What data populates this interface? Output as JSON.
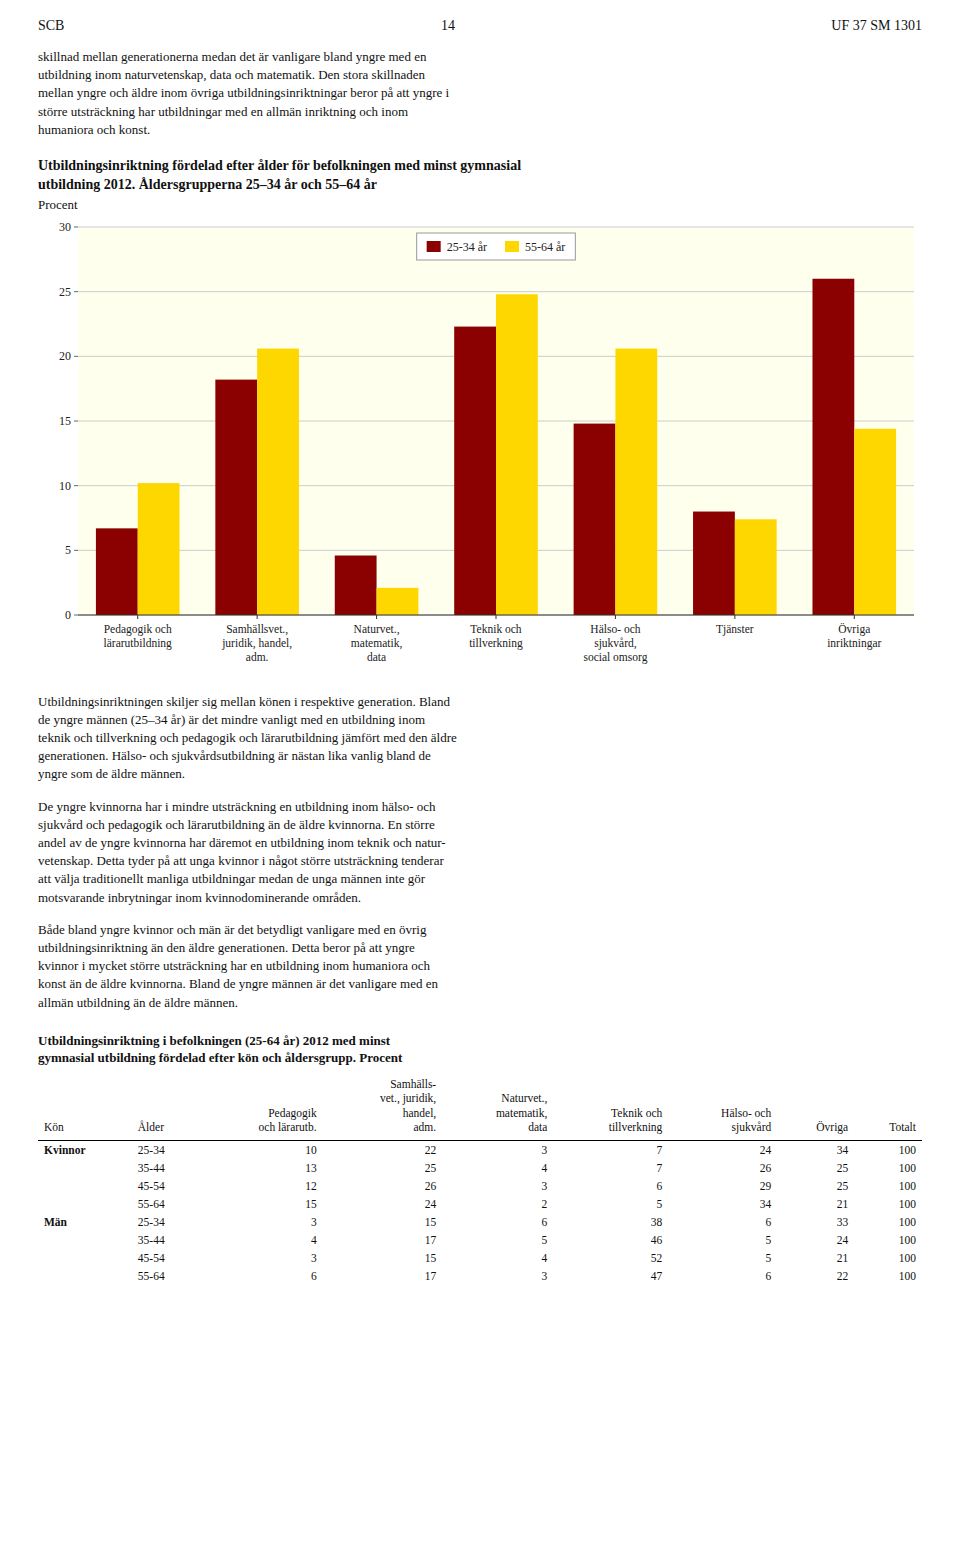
{
  "chart_data": {
    "type": "bar",
    "title": "Utbildningsinriktning fördelad efter ålder för befolkningen med minst gymnasial\nutbildning 2012. Åldersgrupperna 25–34 år och 55–64 år",
    "subtitle": "Procent",
    "categories": [
      "Pedagogik och\nlärarutbildning",
      "Samhällsvet.,\njuridik, handel,\nadm.",
      "Naturvet.,\nmatematik,\ndata",
      "Teknik och\ntillverkning",
      "Hälso- och\nsjukvård,\nsocial omsorg",
      "Tjänster",
      "Övriga\ninriktningar"
    ],
    "series": [
      {
        "name": "25-34 år",
        "color": "#8B0000",
        "values": [
          6.7,
          18.2,
          4.6,
          22.3,
          14.8,
          8.0,
          26.0
        ]
      },
      {
        "name": "55-64 år",
        "color": "#FFD700",
        "values": [
          10.2,
          20.6,
          2.1,
          24.8,
          20.6,
          7.4,
          14.4
        ]
      }
    ],
    "ylim": [
      0,
      30
    ],
    "yticks": [
      0,
      5,
      10,
      15,
      20,
      25,
      30
    ],
    "grid": true,
    "legend": "top"
  },
  "page": {
    "header_left": "SCB",
    "header_center": "14",
    "header_right": "UF 37 SM 1301",
    "body_texts": [
      "skillnad mellan generationerna medan det är vanligare bland yngre med en\nutbildning inom naturvetenskap, data och matematik. Den stora skillnaden\nmellan yngre och äldre inom övriga utbildningsinriktningar beror på att yngre i\nstörre utsträckning har utbildningar med en allmän inriktning och inom\nhumaniora och konst.",
      "Utbildningsinriktningen skiljer sig mellan könen i respektive generation. Bland\nde yngre männen (25–34 år) är det mindre vanligt med en utbildning inom\nteknik och tillverkning och pedagogik och lärarutbildning jämfört med den äldre\ngenerationen. Hälso- och sjukvårdsutbildning är nästan lika vanlig bland de\nyngre som de äldre männen.",
      "De yngre kvinnorna har i mindre utsträckning en utbildning inom hälso- och\nsjukvård och pedagogik och lärarutbildning än de äldre kvinnorna. En större\nandel av de yngre kvinnorna har däremot en utbildning inom teknik och natur-\nvetenskap. Detta tyder på att unga kvinnor i något större utsträckning tenderar\natt välja traditionellt manliga utbildningar medan de unga männen inte gör\nmotsvarande inbrytningar inom kvinnodominerande områden.",
      "Både bland yngre kvinnor och män är det betydligt vanligare med en övrig\nutbildningsinriktning än den äldre generationen. Detta beror på att yngre\nkvinnor i mycket större utsträckning har en utbildning inom humaniora och\nkonst än de äldre kvinnorna. Bland de yngre männen är det vanligare med en\nallmän utbildning än de äldre männen."
    ]
  },
  "table": {
    "title": "Utbildningsinriktning i befolkningen (25-64 år) 2012 med minst\ngymnasial utbildning fördelad efter kön och åldersgrupp. Procent",
    "headers": [
      "Kön",
      "Ålder",
      "Pedagogik\noch lärarutb.",
      "Samhälls-\nvet., juridik,\nhandel,\nadm.",
      "Naturvet.,\nmatematik,\ndata",
      "Teknik och\ntillverkning",
      "Hälso- och\nsjukvård",
      "Övriga",
      "Totalt"
    ],
    "rows": [
      [
        "Kvinnor",
        "25-34",
        "10",
        "22",
        "3",
        "7",
        "24",
        "34",
        "100"
      ],
      [
        null,
        "35-44",
        "13",
        "25",
        "4",
        "7",
        "26",
        "25",
        "100"
      ],
      [
        null,
        "45-54",
        "12",
        "26",
        "3",
        "6",
        "29",
        "25",
        "100"
      ],
      [
        null,
        "55-64",
        "15",
        "24",
        "2",
        "5",
        "34",
        "21",
        "100"
      ],
      [
        "Män",
        "25-34",
        "3",
        "15",
        "6",
        "38",
        "6",
        "33",
        "100"
      ],
      [
        null,
        "35-44",
        "4",
        "17",
        "5",
        "46",
        "5",
        "24",
        "100"
      ],
      [
        null,
        "45-54",
        "3",
        "15",
        "4",
        "52",
        "5",
        "21",
        "100"
      ],
      [
        null,
        "55-64",
        "6",
        "17",
        "3",
        "47",
        "6",
        "22",
        "100"
      ]
    ]
  }
}
